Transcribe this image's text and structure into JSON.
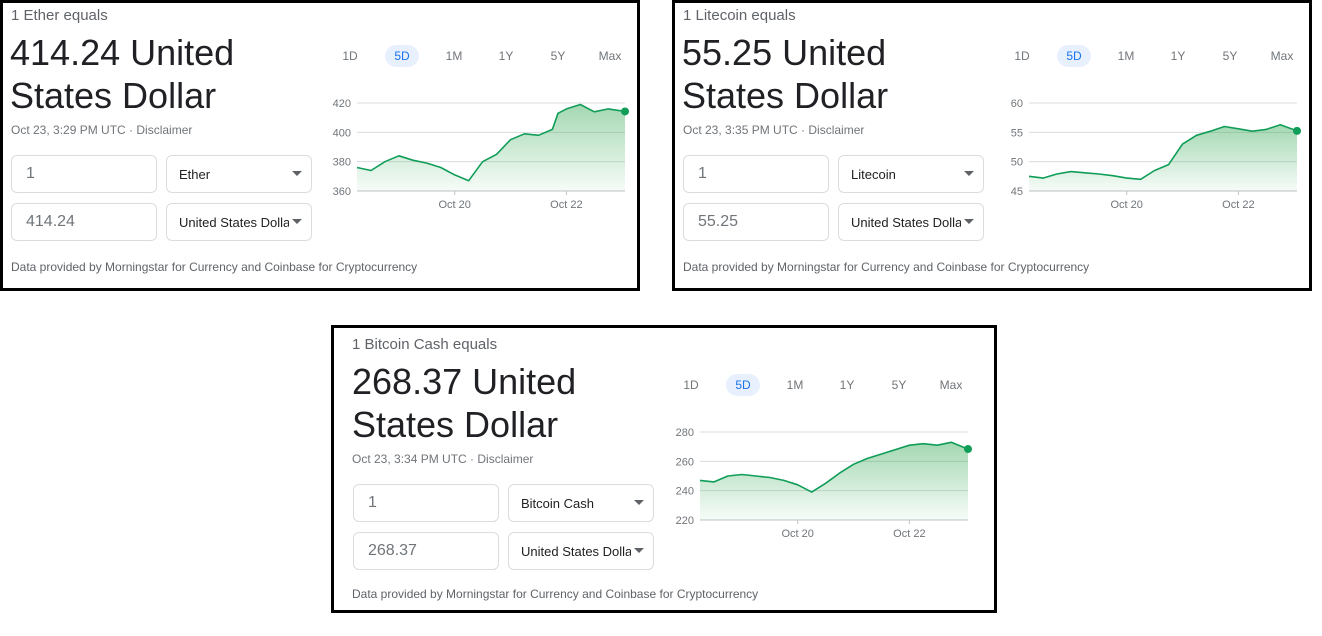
{
  "widgets": [
    {
      "header": "1 Ether equals",
      "amount_line1": "414.24 United",
      "amount_line2": "States Dollar",
      "timestamp": "Oct 23, 3:29 PM UTC · Disclaimer",
      "input_from": "1",
      "currency_from": "Ether",
      "input_to": "414.24",
      "currency_to": "United States Dollar",
      "footer": "Data provided by Morningstar for Currency and Coinbase for Cryptocurrency",
      "ranges": [
        "1D",
        "5D",
        "1M",
        "1Y",
        "5Y",
        "Max"
      ],
      "active_range": "5D"
    },
    {
      "header": "1 Litecoin equals",
      "amount_line1": "55.25 United",
      "amount_line2": "States Dollar",
      "timestamp": "Oct 23, 3:35 PM UTC · Disclaimer",
      "input_from": "1",
      "currency_from": "Litecoin",
      "input_to": "55.25",
      "currency_to": "United States Dollar",
      "footer": "Data provided by Morningstar for Currency and Coinbase for Cryptocurrency",
      "ranges": [
        "1D",
        "5D",
        "1M",
        "1Y",
        "5Y",
        "Max"
      ],
      "active_range": "5D"
    },
    {
      "header": "1 Bitcoin Cash equals",
      "amount_line1": "268.37 United",
      "amount_line2": "States Dollar",
      "timestamp": "Oct 23, 3:34 PM UTC · Disclaimer",
      "input_from": "1",
      "currency_from": "Bitcoin Cash",
      "input_to": "268.37",
      "currency_to": "United States Dollar",
      "footer": "Data provided by Morningstar for Currency and Coinbase for Cryptocurrency",
      "ranges": [
        "1D",
        "5D",
        "1M",
        "1Y",
        "5Y",
        "Max"
      ],
      "active_range": "5D"
    }
  ],
  "colors": {
    "line": "#0f9d58",
    "fill_top": "#34a853",
    "grid": "#dadce0",
    "active_range_bg": "#e8f0fe",
    "active_range_text": "#1a73e8"
  },
  "chart_data": [
    {
      "type": "area",
      "title": "",
      "xlabel": "",
      "ylabel": "",
      "x_tick_labels": [
        "Oct 20",
        "Oct 22"
      ],
      "x_tick_positions": [
        1.75,
        3.75
      ],
      "y_ticks": [
        360,
        380,
        400,
        420
      ],
      "ylim": [
        360,
        420
      ],
      "xlim": [
        0,
        4.8
      ],
      "grid": true,
      "series": [
        {
          "name": "",
          "x": [
            0,
            0.25,
            0.5,
            0.75,
            1.0,
            1.25,
            1.5,
            1.75,
            2.0,
            2.25,
            2.5,
            2.75,
            3.0,
            3.25,
            3.5,
            3.6,
            3.75,
            4.0,
            4.25,
            4.5,
            4.8
          ],
          "y": [
            376,
            374,
            380,
            384,
            381,
            379,
            376,
            371,
            367,
            380,
            385,
            395,
            399,
            398,
            402,
            413,
            416,
            419,
            414,
            416,
            414.24
          ]
        }
      ]
    },
    {
      "type": "area",
      "title": "",
      "xlabel": "",
      "ylabel": "",
      "x_tick_labels": [
        "Oct 20",
        "Oct 22"
      ],
      "x_tick_positions": [
        1.75,
        3.75
      ],
      "y_ticks": [
        45,
        50,
        55,
        60
      ],
      "ylim": [
        45,
        60
      ],
      "xlim": [
        0,
        4.8
      ],
      "grid": true,
      "series": [
        {
          "name": "",
          "x": [
            0,
            0.25,
            0.5,
            0.75,
            1.0,
            1.25,
            1.5,
            1.75,
            2.0,
            2.25,
            2.5,
            2.75,
            3.0,
            3.25,
            3.5,
            3.75,
            4.0,
            4.25,
            4.5,
            4.8
          ],
          "y": [
            47.5,
            47.2,
            47.9,
            48.3,
            48.1,
            47.9,
            47.6,
            47.2,
            47.0,
            48.5,
            49.5,
            53.0,
            54.5,
            55.2,
            56.0,
            55.6,
            55.2,
            55.5,
            56.3,
            55.25
          ]
        }
      ]
    },
    {
      "type": "area",
      "title": "",
      "xlabel": "",
      "ylabel": "",
      "x_tick_labels": [
        "Oct 20",
        "Oct 22"
      ],
      "x_tick_positions": [
        1.75,
        3.75
      ],
      "y_ticks": [
        220,
        240,
        260,
        280
      ],
      "ylim": [
        220,
        280
      ],
      "xlim": [
        0,
        4.8
      ],
      "grid": true,
      "series": [
        {
          "name": "",
          "x": [
            0,
            0.25,
            0.5,
            0.75,
            1.0,
            1.25,
            1.5,
            1.75,
            2.0,
            2.25,
            2.5,
            2.75,
            3.0,
            3.25,
            3.5,
            3.75,
            4.0,
            4.25,
            4.5,
            4.8
          ],
          "y": [
            247,
            246,
            250,
            251,
            250,
            249,
            247,
            244,
            239,
            245,
            252,
            258,
            262,
            265,
            268,
            271,
            272,
            271,
            273,
            268.37
          ]
        }
      ]
    }
  ]
}
